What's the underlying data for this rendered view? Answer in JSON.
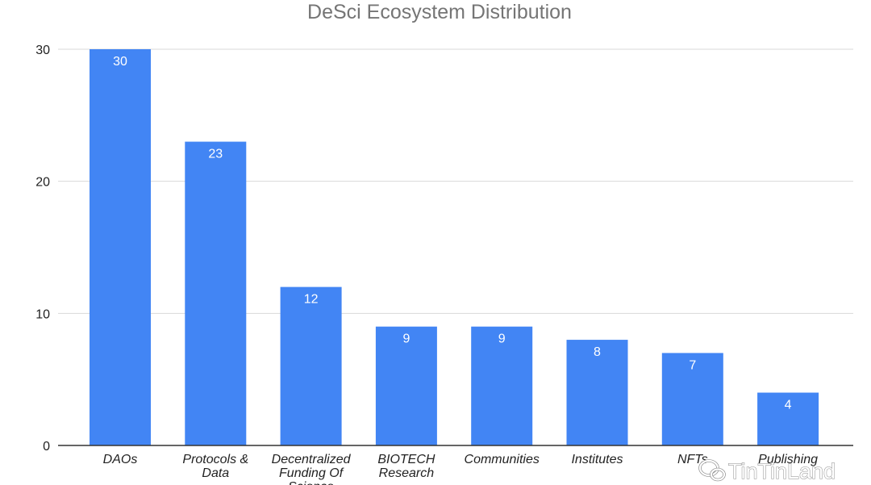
{
  "chart_data": {
    "type": "bar",
    "title": "DeSci Ecosystem Distribution",
    "categories": [
      [
        "DAOs"
      ],
      [
        "Protocols &",
        "Data"
      ],
      [
        "Decentralized",
        "Funding Of",
        "Science"
      ],
      [
        "BIOTECH",
        "Research"
      ],
      [
        "Communities"
      ],
      [
        "Institutes"
      ],
      [
        "NFTs"
      ],
      [
        "Publishing"
      ]
    ],
    "values": [
      30,
      23,
      12,
      9,
      9,
      8,
      7,
      4
    ],
    "ylim": [
      0,
      30
    ],
    "yticks": [
      0,
      10,
      20,
      30
    ],
    "xlabel": "",
    "ylabel": "",
    "grid": true,
    "data_labels": true,
    "bar_color": "#4285f4",
    "title_color": "#757575"
  },
  "watermark": {
    "icon": "wechat-icon",
    "text": "TinTinLand"
  }
}
